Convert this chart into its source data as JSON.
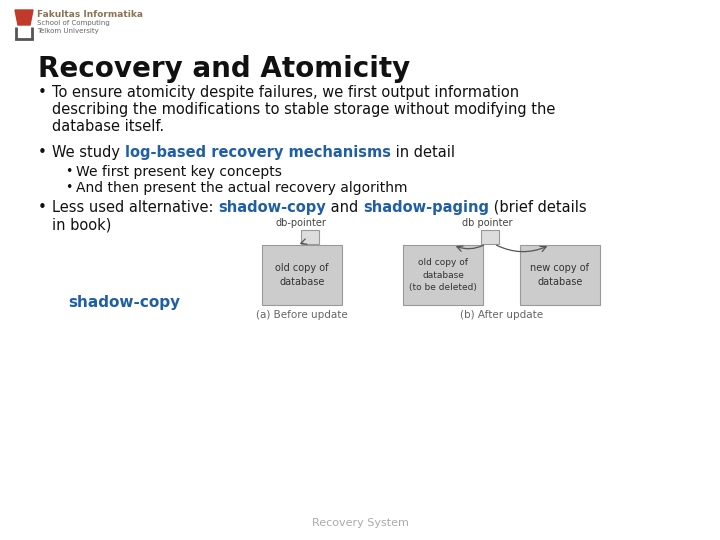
{
  "title": "Recovery and Atomicity",
  "background_color": "#ffffff",
  "logo_text1": "Fakultas Informatika",
  "logo_text2": "School of Computing",
  "logo_text3": "Telkom University",
  "logo_color1": "#c0392b",
  "logo_color2": "#8B7355",
  "bullet1_line1": "To ensure atomicity despite failures, we first output information",
  "bullet1_line2": "describing the modifications to stable storage without modifying the",
  "bullet1_line3": "database itself.",
  "bullet2_pre": "We study ",
  "bullet2_bold": "log-based recovery mechanisms",
  "bullet2_post": " in detail",
  "sub_bullet1": "We first present key concepts",
  "sub_bullet2": "And then present the actual recovery algorithm",
  "bullet3_pre": "Less used alternative: ",
  "bullet3_bold1": "shadow-copy",
  "bullet3_mid": " and ",
  "bullet3_bold2": "shadow-paging",
  "bullet3_post1": " (brief details",
  "bullet3_line2": "in book)",
  "shadow_copy_label": "shadow-copy",
  "footer": "Recovery System",
  "highlight_color": "#1f5fa6",
  "text_color": "#111111",
  "box_fill": "#cccccc",
  "box_edge": "#999999",
  "small_box_fill": "#dddddd",
  "diagram_caption1": "(a) Before update",
  "diagram_caption2": "(b) After update",
  "db_pointer_label1": "db-pointer",
  "db_pointer_label2": "db pointer",
  "box_label1": "old copy of\ndatabase",
  "box_label2": "old copy of\ndatabase\n(to be deleted)",
  "box_label3": "new copy of\ndatabase",
  "font_family": "DejaVu Sans"
}
